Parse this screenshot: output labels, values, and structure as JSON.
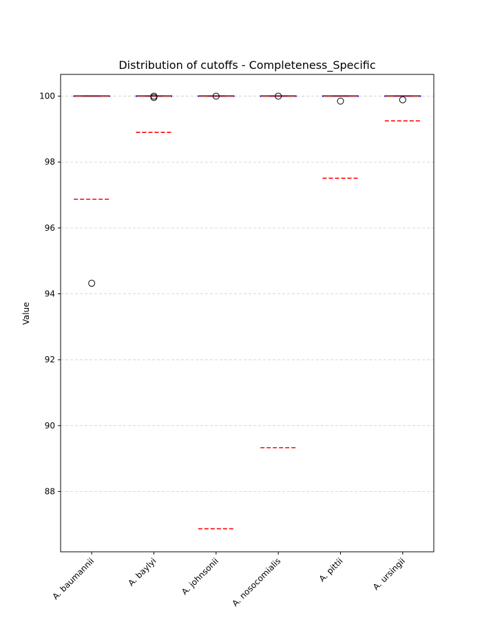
{
  "chart_data": {
    "type": "box",
    "title": "Distribution of cutoffs - Completeness_Specific",
    "xlabel": "",
    "ylabel": "Value",
    "ylim": [
      86.17,
      100.66
    ],
    "yticks": [
      88,
      90,
      92,
      94,
      96,
      98,
      100
    ],
    "grid": "y-dashed",
    "categories": [
      "A. baumannii",
      "A. baylyi",
      "A. johnsonii",
      "A. nosocomialis",
      "A. pittii",
      "A. ursingii"
    ],
    "boxes": [
      {
        "q1": 100.0,
        "median": 100.0,
        "q3": 100.0,
        "whisker_low": 100.0,
        "whisker_high": 100.0,
        "outliers": [
          94.32
        ],
        "cutoff": 96.87
      },
      {
        "q1": 100.0,
        "median": 100.0,
        "q3": 100.0,
        "whisker_low": 100.0,
        "whisker_high": 100.0,
        "outliers": [
          99.96,
          100.0
        ],
        "cutoff": 98.9
      },
      {
        "q1": 100.0,
        "median": 100.0,
        "q3": 100.0,
        "whisker_low": 100.0,
        "whisker_high": 100.0,
        "outliers": [
          100.0
        ],
        "cutoff": 86.87
      },
      {
        "q1": 100.0,
        "median": 100.0,
        "q3": 100.0,
        "whisker_low": 100.0,
        "whisker_high": 100.0,
        "outliers": [
          100.0
        ],
        "cutoff": 89.33
      },
      {
        "q1": 100.0,
        "median": 100.0,
        "q3": 100.0,
        "whisker_low": 100.0,
        "whisker_high": 100.0,
        "outliers": [
          99.85
        ],
        "cutoff": 97.51
      },
      {
        "q1": 100.0,
        "median": 100.0,
        "q3": 100.0,
        "whisker_low": 100.0,
        "whisker_high": 100.0,
        "outliers": [
          99.89
        ],
        "cutoff": 99.25
      }
    ],
    "colors": {
      "box_edge": "#0000ff",
      "median": "#ff7f0e",
      "cutoff_line": "#ff0000",
      "grid": "#cccccc",
      "axis": "#000000"
    }
  }
}
